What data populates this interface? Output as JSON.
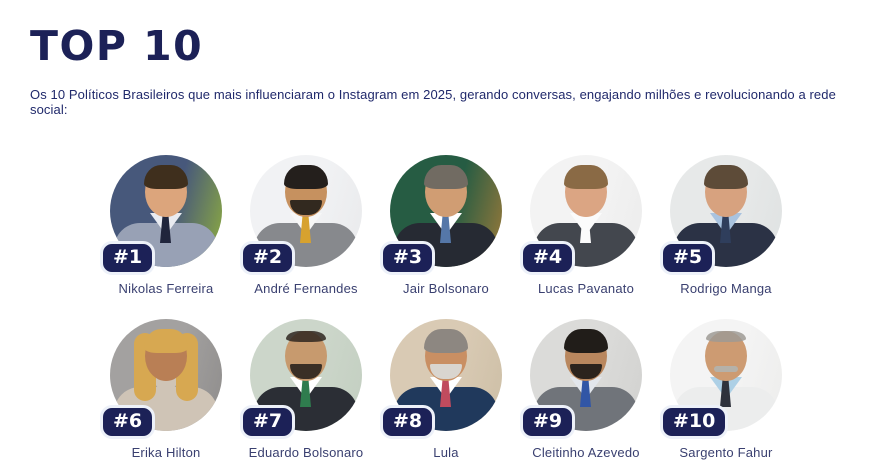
{
  "page": {
    "title": "TOP 10",
    "subtitle": "Os 10 Políticos Brasileiros que mais influenciaram o Instagram em 2025, gerando conversas, engajando milhões e revolucionando a rede social:"
  },
  "colors": {
    "accent_navy": "#1c2157",
    "badge_bg": "#1c2157",
    "badge_text": "#ffffff",
    "badge_border": "#edf1f9",
    "name_text": "#3a4070",
    "subtitle_text": "#20296b"
  },
  "people": [
    {
      "rank": 1,
      "rank_label": "#1",
      "name": "Nikolas Ferreira",
      "photo": {
        "bg_left": "#47587b",
        "bg_right": "#8fae3e",
        "hair": "#3f2f1d",
        "skin": "#dca57c",
        "suit": "#98a1b5",
        "shirt": "#e9ebf1",
        "tie": "#20253c"
      }
    },
    {
      "rank": 2,
      "rank_label": "#2",
      "name": "André Fernandes",
      "photo": {
        "bg_left": "#f1f2f4",
        "bg_right": "#e9eaec",
        "hair": "#241f1c",
        "skin": "#c6915f",
        "suit": "#87898d",
        "shirt": "#f7f7f7",
        "tie": "#d7a22f",
        "facial": "#32291f",
        "facial_style": "beard"
      }
    },
    {
      "rank": 3,
      "rank_label": "#3",
      "name": "Jair Bolsonaro",
      "photo": {
        "bg_left": "#265c43",
        "bg_right": "#9c7a3a",
        "hair": "#716b62",
        "skin": "#d09d73",
        "suit": "#262a33",
        "shirt": "#ffffff",
        "tie": "#5577a8"
      }
    },
    {
      "rank": 4,
      "rank_label": "#4",
      "name": "Lucas Pavanato",
      "photo": {
        "bg_left": "#f3f3f3",
        "bg_right": "#ececec",
        "hair": "#8a6a45",
        "skin": "#dba583",
        "suit": "#43474e",
        "shirt": "#fbfbfb",
        "tie": "#fbfbfb"
      }
    },
    {
      "rank": 5,
      "rank_label": "#5",
      "name": "Rodrigo Manga",
      "photo": {
        "bg_left": "#e7e9e9",
        "bg_right": "#dfe2e2",
        "hair": "#5d4b38",
        "skin": "#d7a27f",
        "suit": "#2b3245",
        "shirt": "#a9c3df",
        "tie": "#2f3e5c"
      }
    },
    {
      "rank": 6,
      "rank_label": "#6",
      "name": "Erika Hilton",
      "photo": {
        "bg_left": "#a3a1a0",
        "bg_right": "#8f8d8c",
        "hair": "#d7a851",
        "skin": "#b97f55",
        "suit": "#cfc4b6",
        "shirt": "#cfc4b6",
        "tie": "#cfc4b6",
        "style": "long"
      }
    },
    {
      "rank": 7,
      "rank_label": "#7",
      "name": "Eduardo Bolsonaro",
      "photo": {
        "bg_left": "#ccd6ca",
        "bg_right": "#c3cfc1",
        "hair": "#2e2620",
        "skin": "#c79a6e",
        "suit": "#2b2e35",
        "shirt": "#ffffff",
        "tie": "#2f7c4e",
        "style": "bald",
        "facial": "#3a2f26",
        "facial_style": "beard"
      }
    },
    {
      "rank": 8,
      "rank_label": "#8",
      "name": "Lula",
      "photo": {
        "bg_left": "#d9cab4",
        "bg_right": "#cdbfa6",
        "hair": "#8d8781",
        "skin": "#c98f63",
        "suit": "#20395c",
        "shirt": "#ffffff",
        "tie": "#c04b5e",
        "facial": "#d9d5cf",
        "facial_style": "beard"
      }
    },
    {
      "rank": 9,
      "rank_label": "#9",
      "name": "Cleitinho Azevedo",
      "photo": {
        "bg_left": "#dbdbd9",
        "bg_right": "#d2d2d0",
        "hair": "#211d19",
        "skin": "#b9875e",
        "suit": "#70747a",
        "shirt": "#e2e6ec",
        "tie": "#3156a6",
        "facial": "#2b231d",
        "facial_style": "beard"
      }
    },
    {
      "rank": 10,
      "rank_label": "#10",
      "name": "Sargento Fahur",
      "photo": {
        "bg_left": "#f4f4f4",
        "bg_right": "#ededec",
        "hair": "#9d9a94",
        "skin": "#cd9b72",
        "suit": "#eceded",
        "shirt": "#add0e6",
        "tie": "#2e323c",
        "style": "bald",
        "facial": "#b5b1a9",
        "facial_style": "mustache"
      }
    }
  ]
}
